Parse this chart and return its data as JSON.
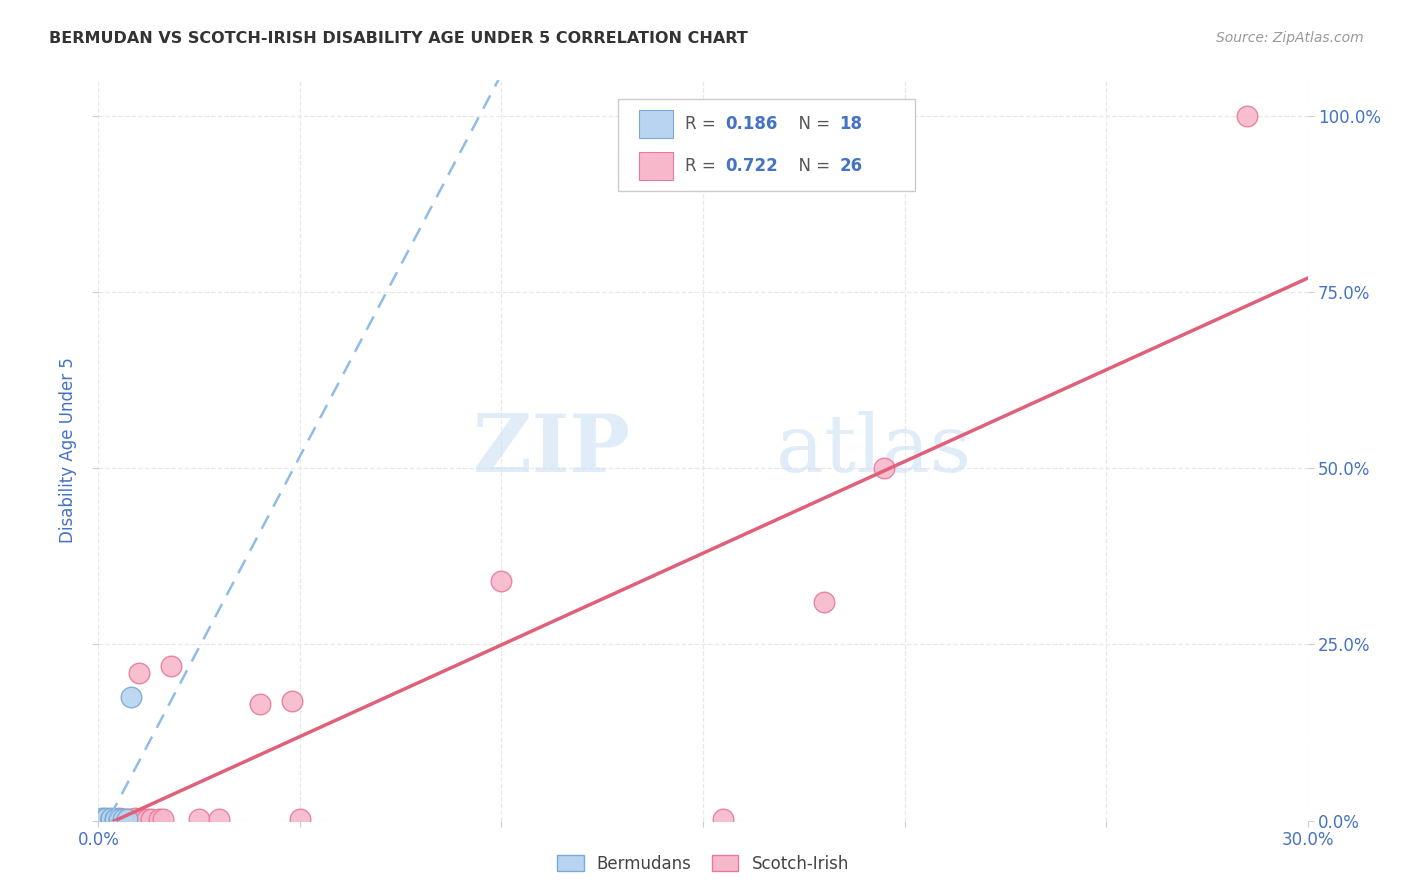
{
  "title": "BERMUDAN VS SCOTCH-IRISH DISABILITY AGE UNDER 5 CORRELATION CHART",
  "source": "Source: ZipAtlas.com",
  "ylabel": "Disability Age Under 5",
  "xlim": [
    0.0,
    0.3
  ],
  "ylim": [
    0.0,
    1.05
  ],
  "xticks": [
    0.0,
    0.05,
    0.1,
    0.15,
    0.2,
    0.25,
    0.3
  ],
  "xticklabels": [
    "0.0%",
    "",
    "",
    "",
    "",
    "",
    "30.0%"
  ],
  "yticks": [
    0.0,
    0.25,
    0.5,
    0.75,
    1.0
  ],
  "yticklabels": [
    "0.0%",
    "25.0%",
    "50.0%",
    "75.0%",
    "100.0%"
  ],
  "bermudan_color": "#b8d4f0",
  "scotch_irish_color": "#f7b8cb",
  "bermudan_edge_color": "#7aaad4",
  "scotch_irish_edge_color": "#e87a9a",
  "bermudan_line_color": "#90bce8",
  "scotch_irish_line_color": "#e0607a",
  "R_bermudan": 0.186,
  "N_bermudan": 18,
  "R_scotch_irish": 0.722,
  "N_scotch_irish": 26,
  "bermudan_x": [
    0.001,
    0.001,
    0.001,
    0.002,
    0.002,
    0.002,
    0.002,
    0.003,
    0.003,
    0.003,
    0.003,
    0.004,
    0.004,
    0.005,
    0.005,
    0.006,
    0.007,
    0.008
  ],
  "bermudan_y": [
    0.002,
    0.003,
    0.004,
    0.001,
    0.002,
    0.003,
    0.004,
    0.001,
    0.002,
    0.003,
    0.004,
    0.002,
    0.003,
    0.002,
    0.003,
    0.003,
    0.003,
    0.175
  ],
  "scotch_irish_x": [
    0.001,
    0.002,
    0.003,
    0.004,
    0.005,
    0.006,
    0.007,
    0.008,
    0.009,
    0.01,
    0.011,
    0.012,
    0.013,
    0.015,
    0.016,
    0.018,
    0.025,
    0.03,
    0.04,
    0.048,
    0.05,
    0.1,
    0.155,
    0.18,
    0.195,
    0.285
  ],
  "scotch_irish_y": [
    0.002,
    0.003,
    0.002,
    0.003,
    0.004,
    0.003,
    0.002,
    0.003,
    0.004,
    0.21,
    0.002,
    0.003,
    0.003,
    0.003,
    0.002,
    0.22,
    0.003,
    0.003,
    0.165,
    0.17,
    0.003,
    0.34,
    0.003,
    0.31,
    0.5,
    1.0
  ],
  "watermark_zip": "ZIP",
  "watermark_atlas": "atlas",
  "grid_color": "#e8e8e8",
  "background_color": "#ffffff",
  "axis_label_color": "#4472c4",
  "tick_label_color": "#4472c4",
  "legend_blue": "#4472c4",
  "title_color": "#333333",
  "source_color": "#999999"
}
